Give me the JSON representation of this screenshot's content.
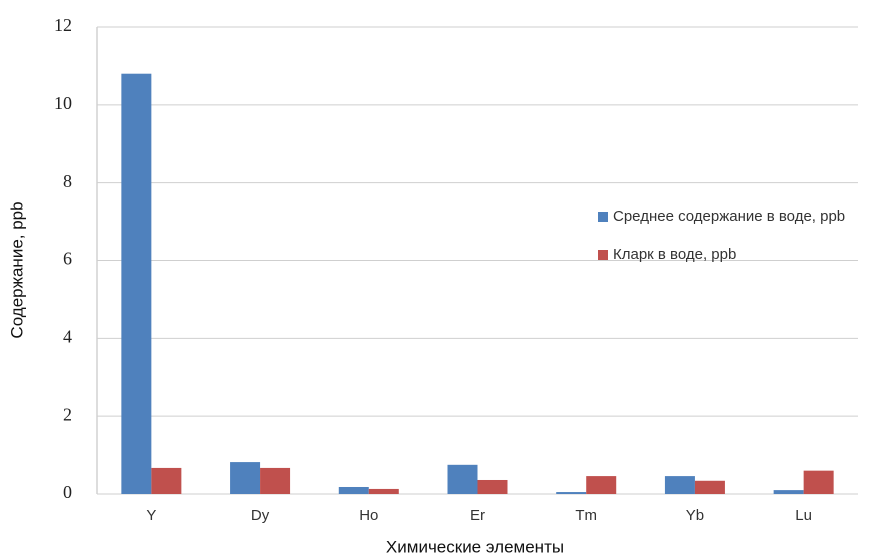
{
  "chart_data": {
    "type": "bar",
    "x_label": "Химические элементы",
    "y_label": "Содержание, ppb",
    "categories": [
      "Y",
      "Dy",
      "Ho",
      "Er",
      "Tm",
      "Yb",
      "Lu"
    ],
    "series": [
      {
        "name": "Среднее содержание в воде, ppb",
        "color": "#4f81bd",
        "values": [
          10.8,
          0.82,
          0.18,
          0.75,
          0.05,
          0.46,
          0.1
        ]
      },
      {
        "name": "Кларк в воде, ppb",
        "color": "#c0504d",
        "values": [
          0.67,
          0.67,
          0.13,
          0.36,
          0.46,
          0.34,
          0.6
        ]
      }
    ],
    "ylim": [
      0,
      12
    ],
    "yticks": [
      0,
      2,
      4,
      6,
      8,
      10,
      12
    ],
    "grid": true,
    "legend": "right"
  }
}
